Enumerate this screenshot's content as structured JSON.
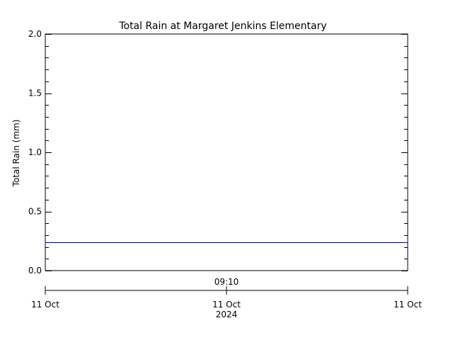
{
  "chart_data": {
    "type": "line",
    "title": "Total Rain at Margaret Jenkins Elementary",
    "ylabel": "Total Rain (mm)",
    "ylim": [
      0,
      2.0
    ],
    "y_major_ticks": [
      {
        "value": 0.0,
        "label": "0.0"
      },
      {
        "value": 0.5,
        "label": "0.5"
      },
      {
        "value": 1.0,
        "label": "1.0"
      },
      {
        "value": 1.5,
        "label": "1.5"
      },
      {
        "value": 2.0,
        "label": "2.0"
      }
    ],
    "y_minor_step": 0.1,
    "time_axis": {
      "center_time_label": "09:10",
      "date_ticks": [
        {
          "label": "11 Oct",
          "sublabel": ""
        },
        {
          "label": "11 Oct",
          "sublabel": "2024"
        },
        {
          "label": "11 Oct",
          "sublabel": ""
        }
      ]
    },
    "series": [
      {
        "values": [
          0.24,
          0.24
        ],
        "color": "#00008b"
      }
    ],
    "grid": false,
    "legend": "none"
  }
}
